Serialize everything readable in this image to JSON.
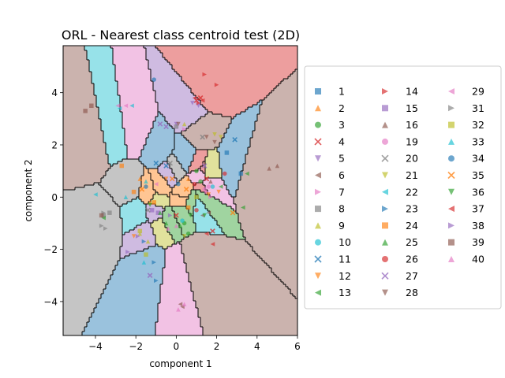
{
  "chart_data": {
    "type": "scatter",
    "title": "ORL - Nearest class centroid test (2D)",
    "xlabel": "component 1",
    "ylabel": "component 2",
    "xlim": [
      -5.6,
      6.0
    ],
    "ylim": [
      -5.3,
      5.8
    ],
    "xticks": [
      -4,
      -2,
      0,
      2,
      4,
      6
    ],
    "yticks": [
      -4,
      -2,
      0,
      2,
      4
    ],
    "xtick_labels": [
      "−4",
      "−2",
      "0",
      "2",
      "4",
      "6"
    ],
    "ytick_labels": [
      "−4",
      "−2",
      "0",
      "2",
      "4"
    ],
    "grid": false,
    "background": "nearest class centroid decision regions",
    "legend_position": "right",
    "legend_columns": 3,
    "series": [
      {
        "name": "1",
        "marker": "square",
        "color": "#1f77b4",
        "points": [
          [
            2.5,
            1.7
          ],
          [
            3.2,
            0.9
          ]
        ]
      },
      {
        "name": "2",
        "marker": "triangle-up",
        "color": "#ff7f0e",
        "points": [
          [
            -1.8,
            0.7
          ],
          [
            -1.3,
            -0.2
          ],
          [
            0.6,
            0.7
          ]
        ]
      },
      {
        "name": "3",
        "marker": "circle",
        "color": "#2ca02c",
        "points": [
          [
            1.0,
            1.0
          ],
          [
            0.6,
            -1.4
          ],
          [
            1.2,
            0.6
          ],
          [
            0.4,
            -1.0
          ]
        ]
      },
      {
        "name": "4",
        "marker": "x",
        "color": "#d62728",
        "points": [
          [
            1.2,
            3.8
          ],
          [
            1.0,
            3.7
          ],
          [
            0.0,
            -0.7
          ],
          [
            1.8,
            -1.3
          ],
          [
            1.5,
            0.7
          ]
        ]
      },
      {
        "name": "5",
        "marker": "triangle-down",
        "color": "#9467bd",
        "points": [
          [
            1.1,
            3.5
          ],
          [
            0.8,
            3.6
          ],
          [
            0.0,
            2.8
          ]
        ]
      },
      {
        "name": "6",
        "marker": "triangle-left",
        "color": "#8c564b",
        "points": [
          [
            0.2,
            -4.1
          ],
          [
            0.3,
            -4.2
          ],
          [
            1.3,
            -0.7
          ],
          [
            1.6,
            -0.6
          ]
        ]
      },
      {
        "name": "7",
        "marker": "triangle-right",
        "color": "#e377c2",
        "points": [
          [
            0.4,
            2.6
          ],
          [
            1.5,
            0.2
          ],
          [
            1.7,
            0.0
          ]
        ]
      },
      {
        "name": "8",
        "marker": "square",
        "color": "#7f7f7f",
        "points": [
          [
            -3.6,
            -0.7
          ],
          [
            -3.3,
            -0.6
          ],
          [
            0.0,
            2.7
          ]
        ]
      },
      {
        "name": "9",
        "marker": "triangle-up",
        "color": "#bcbd22",
        "points": [
          [
            -1.8,
            -1.4
          ],
          [
            -1.4,
            -1.7
          ],
          [
            0.4,
            2.8
          ]
        ]
      },
      {
        "name": "10",
        "marker": "circle",
        "color": "#17becf",
        "points": [
          [
            1.8,
            0.4
          ],
          [
            0.3,
            -0.9
          ]
        ]
      },
      {
        "name": "11",
        "marker": "x",
        "color": "#1f77b4",
        "points": [
          [
            -1.0,
            1.3
          ],
          [
            -0.5,
            1.2
          ],
          [
            2.9,
            2.2
          ]
        ]
      },
      {
        "name": "12",
        "marker": "triangle-down",
        "color": "#ff7f0e",
        "points": [
          [
            -2.1,
            -1.5
          ],
          [
            -0.5,
            0.7
          ],
          [
            2.1,
            0.2
          ],
          [
            1.6,
            0.1
          ]
        ]
      },
      {
        "name": "13",
        "marker": "triangle-left",
        "color": "#2ca02c",
        "points": [
          [
            -3.6,
            -0.8
          ],
          [
            3.3,
            -0.4
          ],
          [
            3.5,
            0.9
          ],
          [
            2.2,
            0.4
          ]
        ]
      },
      {
        "name": "14",
        "marker": "triangle-right",
        "color": "#d62728",
        "points": [
          [
            1.4,
            4.7
          ],
          [
            2.0,
            4.3
          ],
          [
            1.1,
            3.6
          ]
        ]
      },
      {
        "name": "15",
        "marker": "square",
        "color": "#9467bd",
        "points": [
          [
            -1.2,
            -0.5
          ],
          [
            -0.9,
            -0.6
          ]
        ]
      },
      {
        "name": "16",
        "marker": "triangle-up",
        "color": "#8c564b",
        "points": [
          [
            4.6,
            1.1
          ],
          [
            5.0,
            1.2
          ],
          [
            1.7,
            0.6
          ]
        ]
      },
      {
        "name": "19",
        "marker": "circle",
        "color": "#e377c2",
        "points": [
          [
            1.6,
            0.4
          ],
          [
            1.4,
            0.3
          ]
        ]
      },
      {
        "name": "20",
        "marker": "x",
        "color": "#7f7f7f",
        "points": [
          [
            -0.3,
            1.3
          ],
          [
            -1.4,
            -0.5
          ],
          [
            1.3,
            2.3
          ]
        ]
      },
      {
        "name": "21",
        "marker": "triangle-down",
        "color": "#bcbd22",
        "points": [
          [
            1.9,
            2.4
          ],
          [
            0.4,
            -1.5
          ],
          [
            2.2,
            2.3
          ]
        ]
      },
      {
        "name": "22",
        "marker": "triangle-left",
        "color": "#17becf",
        "points": [
          [
            -2.2,
            3.5
          ],
          [
            -2.8,
            3.4
          ],
          [
            -4.0,
            0.1
          ]
        ]
      },
      {
        "name": "23",
        "marker": "triangle-right",
        "color": "#1f77b4",
        "points": [
          [
            -1.6,
            -1.7
          ],
          [
            -1.1,
            -2.5
          ],
          [
            -1.0,
            -3.2
          ]
        ]
      },
      {
        "name": "24",
        "marker": "square",
        "color": "#ff7f0e",
        "points": [
          [
            -2.1,
            0.2
          ],
          [
            -2.7,
            1.2
          ],
          [
            -1.1,
            -0.2
          ],
          [
            0.6,
            -0.4
          ]
        ]
      },
      {
        "name": "25",
        "marker": "triangle-up",
        "color": "#2ca02c",
        "points": [
          [
            -0.8,
            -0.6
          ],
          [
            -0.5,
            -1.0
          ],
          [
            0.2,
            -1.1
          ]
        ]
      },
      {
        "name": "26",
        "marker": "circle",
        "color": "#d62728",
        "points": [
          [
            2.4,
            0.9
          ],
          [
            0.9,
            0.5
          ],
          [
            1.0,
            -0.5
          ]
        ]
      },
      {
        "name": "27",
        "marker": "x",
        "color": "#9467bd",
        "points": [
          [
            -0.8,
            2.8
          ],
          [
            -0.5,
            2.7
          ],
          [
            -1.3,
            -3.0
          ],
          [
            1.4,
            1.2
          ]
        ]
      },
      {
        "name": "28",
        "marker": "triangle-down",
        "color": "#8c564b",
        "points": [
          [
            0.1,
            2.8
          ],
          [
            1.5,
            2.3
          ],
          [
            1.9,
            2.1
          ]
        ]
      },
      {
        "name": "29",
        "marker": "triangle-left",
        "color": "#e377c2",
        "points": [
          [
            -2.9,
            3.5
          ],
          [
            -2.5,
            3.5
          ],
          [
            -1.0,
            0.5
          ]
        ]
      },
      {
        "name": "31",
        "marker": "triangle-right",
        "color": "#7f7f7f",
        "points": [
          [
            -3.7,
            -1.1
          ],
          [
            -3.5,
            -1.2
          ],
          [
            -3.6,
            -0.6
          ]
        ]
      },
      {
        "name": "32",
        "marker": "square",
        "color": "#bcbd22",
        "points": [
          [
            -1.8,
            -1.3
          ],
          [
            -1.5,
            -2.2
          ],
          [
            1.0,
            0.0
          ]
        ]
      },
      {
        "name": "33",
        "marker": "triangle-up",
        "color": "#17becf",
        "points": [
          [
            -2.5,
            0.0
          ],
          [
            -1.6,
            -2.5
          ],
          [
            -1.5,
            0.6
          ]
        ]
      },
      {
        "name": "34",
        "marker": "circle",
        "color": "#1f77b4",
        "points": [
          [
            -1.1,
            4.5
          ],
          [
            -1.5,
            0.4
          ],
          [
            0.1,
            0.5
          ]
        ]
      },
      {
        "name": "35",
        "marker": "x",
        "color": "#ff7f0e",
        "points": [
          [
            -1.7,
            0.3
          ],
          [
            -0.2,
            0.7
          ],
          [
            0.5,
            0.3
          ],
          [
            2.8,
            -0.6
          ]
        ]
      },
      {
        "name": "36",
        "marker": "triangle-down",
        "color": "#2ca02c",
        "points": [
          [
            1.4,
            -0.7
          ],
          [
            -1.3,
            -0.3
          ],
          [
            0.7,
            -0.7
          ]
        ]
      },
      {
        "name": "37",
        "marker": "triangle-left",
        "color": "#d62728",
        "points": [
          [
            0.9,
            3.8
          ],
          [
            1.3,
            3.7
          ],
          [
            1.8,
            -1.8
          ],
          [
            1.5,
            -1.4
          ]
        ]
      },
      {
        "name": "38",
        "marker": "triangle-right",
        "color": "#9467bd",
        "points": [
          [
            -2.4,
            -2.1
          ],
          [
            -0.3,
            -0.7
          ],
          [
            -1.9,
            -1.5
          ]
        ]
      },
      {
        "name": "39",
        "marker": "square",
        "color": "#8c564b",
        "points": [
          [
            -4.5,
            3.3
          ],
          [
            -4.2,
            3.5
          ],
          [
            -3.7,
            -0.7
          ]
        ]
      },
      {
        "name": "40",
        "marker": "triangle-up",
        "color": "#e377c2",
        "points": [
          [
            0.1,
            -4.3
          ],
          [
            0.4,
            -4.1
          ],
          [
            -0.4,
            -1.2
          ],
          [
            0.0,
            -1.1
          ]
        ]
      }
    ]
  }
}
